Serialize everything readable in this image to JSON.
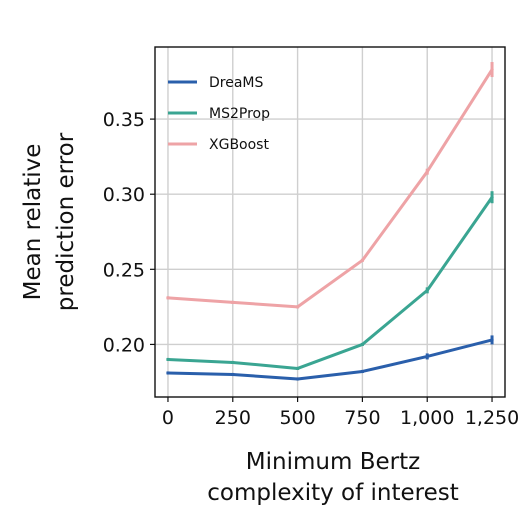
{
  "chart_data": {
    "type": "line",
    "title": "",
    "xlabel": [
      "Minimum Bertz",
      "complexity of interest"
    ],
    "ylabel": [
      "Mean relative",
      "prediction error"
    ],
    "x": [
      0,
      250,
      500,
      750,
      1000,
      1250
    ],
    "x_tick_labels": [
      "0",
      "250",
      "500",
      "750",
      "1,000",
      "1,250"
    ],
    "y_ticks": [
      0.2,
      0.25,
      0.3,
      0.35
    ],
    "y_tick_labels": [
      "0.20",
      "0.25",
      "0.30",
      "0.35"
    ],
    "xlim": [
      -50,
      1300
    ],
    "ylim": [
      0.165,
      0.398
    ],
    "grid": true,
    "legend_position": "top-left",
    "series": [
      {
        "name": "DreaMS",
        "color": "#2a5fab",
        "values": [
          0.181,
          0.18,
          0.177,
          0.182,
          0.192,
          0.203
        ],
        "err": [
          0.001,
          0.001,
          0.001,
          0.001,
          0.002,
          0.003
        ]
      },
      {
        "name": "MS2Prop",
        "color": "#3aa592",
        "values": [
          0.19,
          0.188,
          0.184,
          0.2,
          0.236,
          0.298
        ],
        "err": [
          0.001,
          0.001,
          0.001,
          0.001,
          0.002,
          0.004
        ]
      },
      {
        "name": "XGBoost",
        "color": "#eea3a6",
        "values": [
          0.231,
          0.228,
          0.225,
          0.256,
          0.315,
          0.383
        ],
        "err": [
          0.001,
          0.001,
          0.001,
          0.001,
          0.002,
          0.005
        ]
      }
    ]
  }
}
